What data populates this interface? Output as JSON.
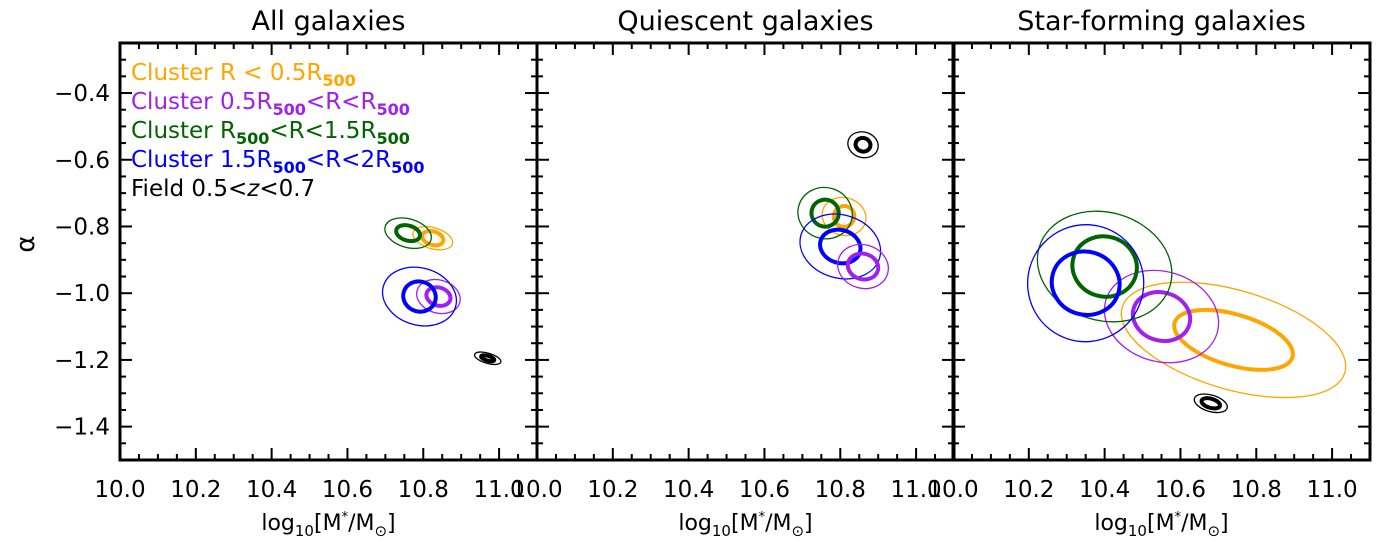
{
  "chart_data": {
    "type": "contour",
    "ylabel": "α",
    "xlabel_parts": {
      "pre": "log",
      "sub": "10",
      "mid": "[M",
      "sup": "*",
      "post": "/M",
      "post_sub": "⊙",
      "end": "]"
    },
    "xlim": [
      10.0,
      11.1
    ],
    "ylim": [
      -1.5,
      -0.25
    ],
    "xticks": [
      10.0,
      10.2,
      10.4,
      10.6,
      10.8,
      11.0
    ],
    "xtick_labels": [
      "10.0",
      "10.2",
      "10.4",
      "10.6",
      "10.8",
      "11.0"
    ],
    "yticks": [
      -0.4,
      -0.6,
      -0.8,
      -1.0,
      -1.2,
      -1.4
    ],
    "ytick_labels": [
      "−0.4",
      "−0.6",
      "−0.8",
      "−1.0",
      "−1.2",
      "−1.4"
    ],
    "legend": [
      {
        "key": "c05",
        "color": "#FFA500",
        "pre": "Cluster R < 0.5R",
        "sub": "500",
        "rest": []
      },
      {
        "key": "c05_1",
        "color": "#A020F0",
        "pre": "Cluster 0.5R",
        "sub": "500",
        "rest": [
          {
            "t": "<R<R"
          },
          {
            "t": "500",
            "sub": true
          }
        ]
      },
      {
        "key": "c1_15",
        "color": "#006400",
        "pre": "Cluster R",
        "sub": "500",
        "rest": [
          {
            "t": "<R<1.5R"
          },
          {
            "t": "500",
            "sub": true
          }
        ]
      },
      {
        "key": "c15_2",
        "color": "#0000FF",
        "pre": "Cluster 1.5R",
        "sub": "500",
        "rest": [
          {
            "t": "<R<2R"
          },
          {
            "t": "500",
            "sub": true
          }
        ]
      },
      {
        "key": "field",
        "color": "#000000",
        "pre": "Field 0.5<",
        "italic": "z",
        "post": "<0.7"
      }
    ],
    "panels": [
      {
        "title": "All galaxies",
        "ellipses": [
          {
            "series": "c05",
            "cx": 10.825,
            "cy": -0.835,
            "a1": 0.06,
            "b1": 0.07,
            "a2": 0.032,
            "b2": 0.045
          },
          {
            "series": "c1_15",
            "cx": 10.76,
            "cy": -0.82,
            "a1": 0.07,
            "b1": 0.095,
            "a2": 0.036,
            "b2": 0.05
          },
          {
            "series": "c05_1",
            "cx": 10.84,
            "cy": -1.01,
            "a1": 0.065,
            "b1": 0.11,
            "a2": 0.036,
            "b2": 0.06
          },
          {
            "series": "c15_2",
            "cx": 10.79,
            "cy": -1.01,
            "a1": 0.11,
            "b1": 0.19,
            "a2": 0.048,
            "b2": 0.1
          },
          {
            "series": "field",
            "cx": 10.97,
            "cy": -1.195,
            "a1": 0.04,
            "b1": 0.034,
            "a2": 0.02,
            "b2": 0.016
          }
        ]
      },
      {
        "title": "Quiescent galaxies",
        "ellipses": [
          {
            "series": "field",
            "cx": 10.86,
            "cy": -0.555,
            "a1": 0.045,
            "b1": 0.085,
            "a2": 0.022,
            "b2": 0.045
          },
          {
            "series": "c05",
            "cx": 10.81,
            "cy": -0.77,
            "a1": 0.065,
            "b1": 0.125,
            "a2": 0.03,
            "b2": 0.07
          },
          {
            "series": "c1_15",
            "cx": 10.76,
            "cy": -0.76,
            "a1": 0.08,
            "b1": 0.17,
            "a2": 0.04,
            "b2": 0.09
          },
          {
            "series": "c15_2",
            "cx": 10.8,
            "cy": -0.86,
            "a1": 0.12,
            "b1": 0.21,
            "a2": 0.06,
            "b2": 0.11
          },
          {
            "series": "c05_1",
            "cx": 10.86,
            "cy": -0.92,
            "a1": 0.075,
            "b1": 0.145,
            "a2": 0.045,
            "b2": 0.085
          }
        ]
      },
      {
        "title": "Star-forming galaxies",
        "ellipses": [
          {
            "series": "c05",
            "cx": 10.74,
            "cy": -1.14,
            "a1": 0.34,
            "b1": 0.33,
            "a2": 0.18,
            "b2": 0.17
          },
          {
            "series": "c05_1",
            "cx": 10.55,
            "cy": -1.07,
            "a1": 0.17,
            "b1": 0.3,
            "a2": 0.085,
            "b2": 0.16
          },
          {
            "series": "c1_15",
            "cx": 10.4,
            "cy": -0.92,
            "a1": 0.2,
            "b1": 0.36,
            "a2": 0.095,
            "b2": 0.2
          },
          {
            "series": "c15_2",
            "cx": 10.35,
            "cy": -0.97,
            "a1": 0.17,
            "b1": 0.39,
            "a2": 0.1,
            "b2": 0.21
          },
          {
            "series": "field",
            "cx": 10.68,
            "cy": -1.33,
            "a1": 0.05,
            "b1": 0.055,
            "a2": 0.028,
            "b2": 0.03
          }
        ]
      }
    ]
  }
}
